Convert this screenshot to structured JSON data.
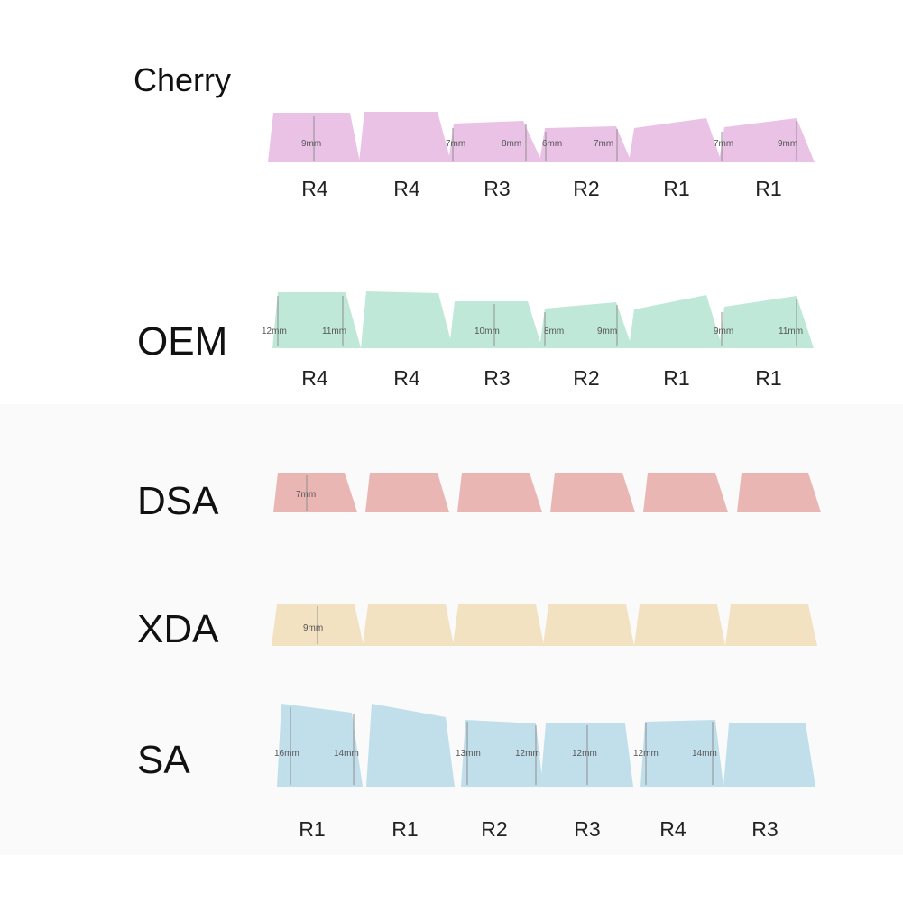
{
  "profiles": [
    {
      "name": "Cherry",
      "color": "#e9c2e6",
      "rows": [
        "R4",
        "R4",
        "R3",
        "R2",
        "R1",
        "R1"
      ],
      "dimensions": [
        "9mm",
        "7mm",
        "8mm",
        "6mm",
        "7mm",
        "7mm",
        "9mm"
      ]
    },
    {
      "name": "OEM",
      "color": "#bfe8d8",
      "rows": [
        "R4",
        "R4",
        "R3",
        "R2",
        "R1",
        "R1"
      ],
      "dimensions": [
        "12mm",
        "11mm",
        "10mm",
        "8mm",
        "9mm",
        "9mm",
        "11mm"
      ]
    },
    {
      "name": "DSA",
      "color": "#e9b6b3",
      "rows": [],
      "dimensions": [
        "7mm"
      ]
    },
    {
      "name": "XDA",
      "color": "#f2e2c1",
      "rows": [],
      "dimensions": [
        "9mm"
      ]
    },
    {
      "name": "SA",
      "color": "#c0dfeb",
      "rows": [
        "R1",
        "R1",
        "R2",
        "R3",
        "R4",
        "R3"
      ],
      "dimensions": [
        "16mm",
        "14mm",
        "13mm",
        "12mm",
        "12mm",
        "12mm",
        "14mm"
      ]
    }
  ]
}
